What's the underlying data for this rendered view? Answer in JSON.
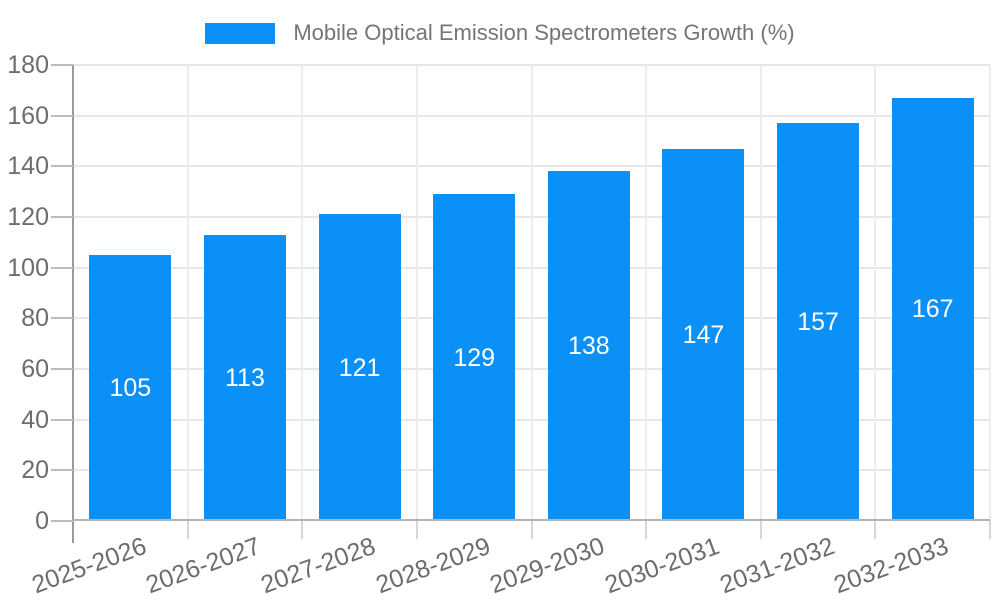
{
  "chart_data": {
    "type": "bar",
    "title": "Mobile Optical Emission Spectrometers Growth (%)",
    "categories": [
      "2025-2026",
      "2026-2027",
      "2027-2028",
      "2028-2029",
      "2029-2030",
      "2030-2031",
      "2031-2032",
      "2032-2033"
    ],
    "values": [
      105,
      113,
      121,
      129,
      138,
      147,
      157,
      167
    ],
    "series": [
      {
        "name": "Mobile Optical Emission Spectrometers Growth (%)",
        "values": [
          105,
          113,
          121,
          129,
          138,
          147,
          157,
          167
        ]
      }
    ],
    "xlabel": "",
    "ylabel": "",
    "ylim": [
      0,
      180
    ],
    "ytick_step": 20,
    "ytick_labels": [
      "0",
      "20",
      "40",
      "60",
      "80",
      "100",
      "120",
      "140",
      "160",
      "180"
    ],
    "grid": true,
    "legend_position": "top-center",
    "data_labels": true,
    "data_label_position": "center-of-bar",
    "colors": {
      "bar": "#0a90f6",
      "bar_value_text": "#ffffff",
      "legend_text": "#757575",
      "tick_text": "#6d6d6d",
      "gridline": "#e7e7e7",
      "axis_left": "#9a9a9a",
      "axis_bottom": "#b3b3b3",
      "background": "#ffffff"
    }
  },
  "legend": {
    "label": "Mobile Optical Emission Spectrometers Growth (%)"
  }
}
